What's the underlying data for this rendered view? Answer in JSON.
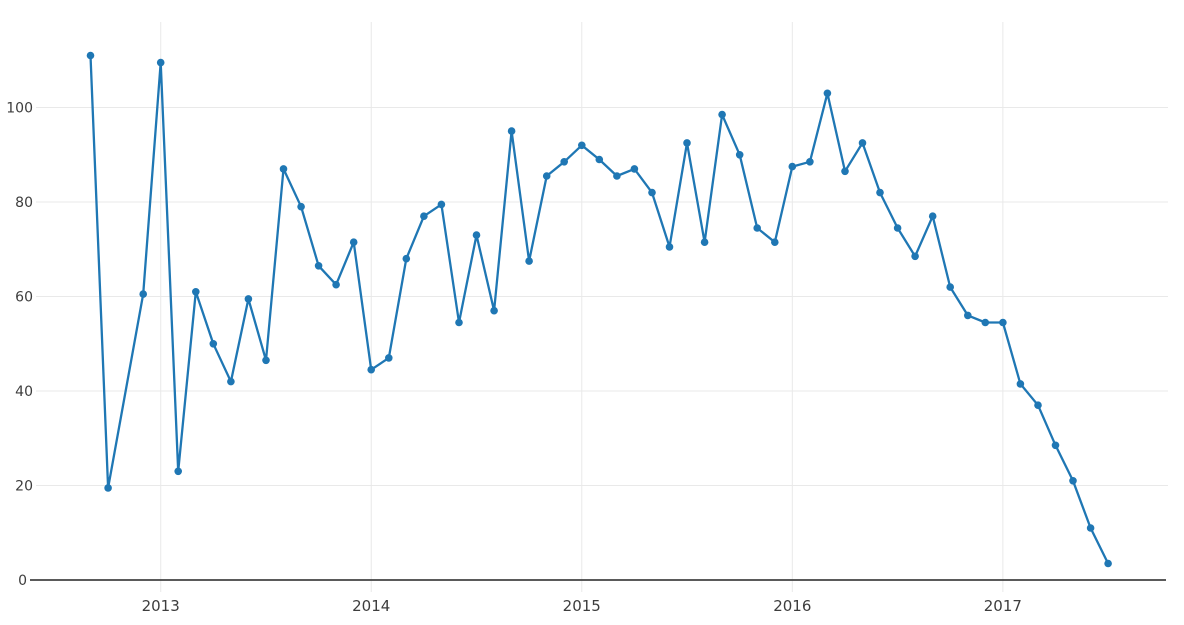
{
  "chart": {
    "background_color": "#ffffff",
    "line_color": "#1f77b4",
    "marker_color": "#1f77b4",
    "grid_color": "#e9e9e9",
    "axis_line_color": "#424242",
    "tick_label_color": "#3d3d3d",
    "y_tick_labels": [
      "0",
      "20",
      "40",
      "60",
      "80",
      "100"
    ],
    "x_tick_labels": [
      "2013",
      "2014",
      "2015",
      "2016",
      "2017"
    ]
  },
  "chart_data": {
    "type": "line",
    "title": "",
    "xlabel": "",
    "ylabel": "",
    "legend": "none",
    "grid": "on",
    "markers": "on",
    "ylim": [
      0,
      117
    ],
    "y_ticks": [
      0,
      20,
      40,
      60,
      80,
      100
    ],
    "x_ticks_years": [
      2013,
      2014,
      2015,
      2016,
      2017
    ],
    "x": [
      "2012-09",
      "2012-10",
      "2012-12",
      "2013-01",
      "2013-02",
      "2013-03",
      "2013-04",
      "2013-05",
      "2013-06",
      "2013-07",
      "2013-08",
      "2013-09",
      "2013-10",
      "2013-11",
      "2013-12",
      "2014-01",
      "2014-02",
      "2014-03",
      "2014-04",
      "2014-05",
      "2014-06",
      "2014-07",
      "2014-08",
      "2014-09",
      "2014-10",
      "2014-11",
      "2014-12",
      "2015-01",
      "2015-02",
      "2015-03",
      "2015-04",
      "2015-05",
      "2015-06",
      "2015-07",
      "2015-08",
      "2015-09",
      "2015-10",
      "2015-11",
      "2015-12",
      "2016-01",
      "2016-02",
      "2016-03",
      "2016-04",
      "2016-05",
      "2016-06",
      "2016-07",
      "2016-08",
      "2016-09",
      "2016-10",
      "2016-11",
      "2016-12",
      "2017-01",
      "2017-02",
      "2017-03",
      "2017-04",
      "2017-05",
      "2017-06",
      "2017-07"
    ],
    "values": [
      111,
      19.5,
      60.5,
      109.5,
      23,
      61,
      50,
      42,
      59.5,
      46.5,
      87,
      79,
      66.5,
      62.5,
      71.5,
      44.5,
      47,
      68,
      77,
      79.5,
      54.5,
      73,
      57,
      95,
      67.5,
      85.5,
      88.5,
      92,
      89,
      85.5,
      87,
      82,
      70.5,
      92.5,
      71.5,
      98.5,
      90,
      74.5,
      71.5,
      87.5,
      88.5,
      103,
      86.5,
      92.5,
      82,
      74.5,
      68.5,
      77,
      62,
      56,
      54.5,
      54.5,
      41.5,
      37,
      28.5,
      21,
      11,
      3.5
    ]
  }
}
